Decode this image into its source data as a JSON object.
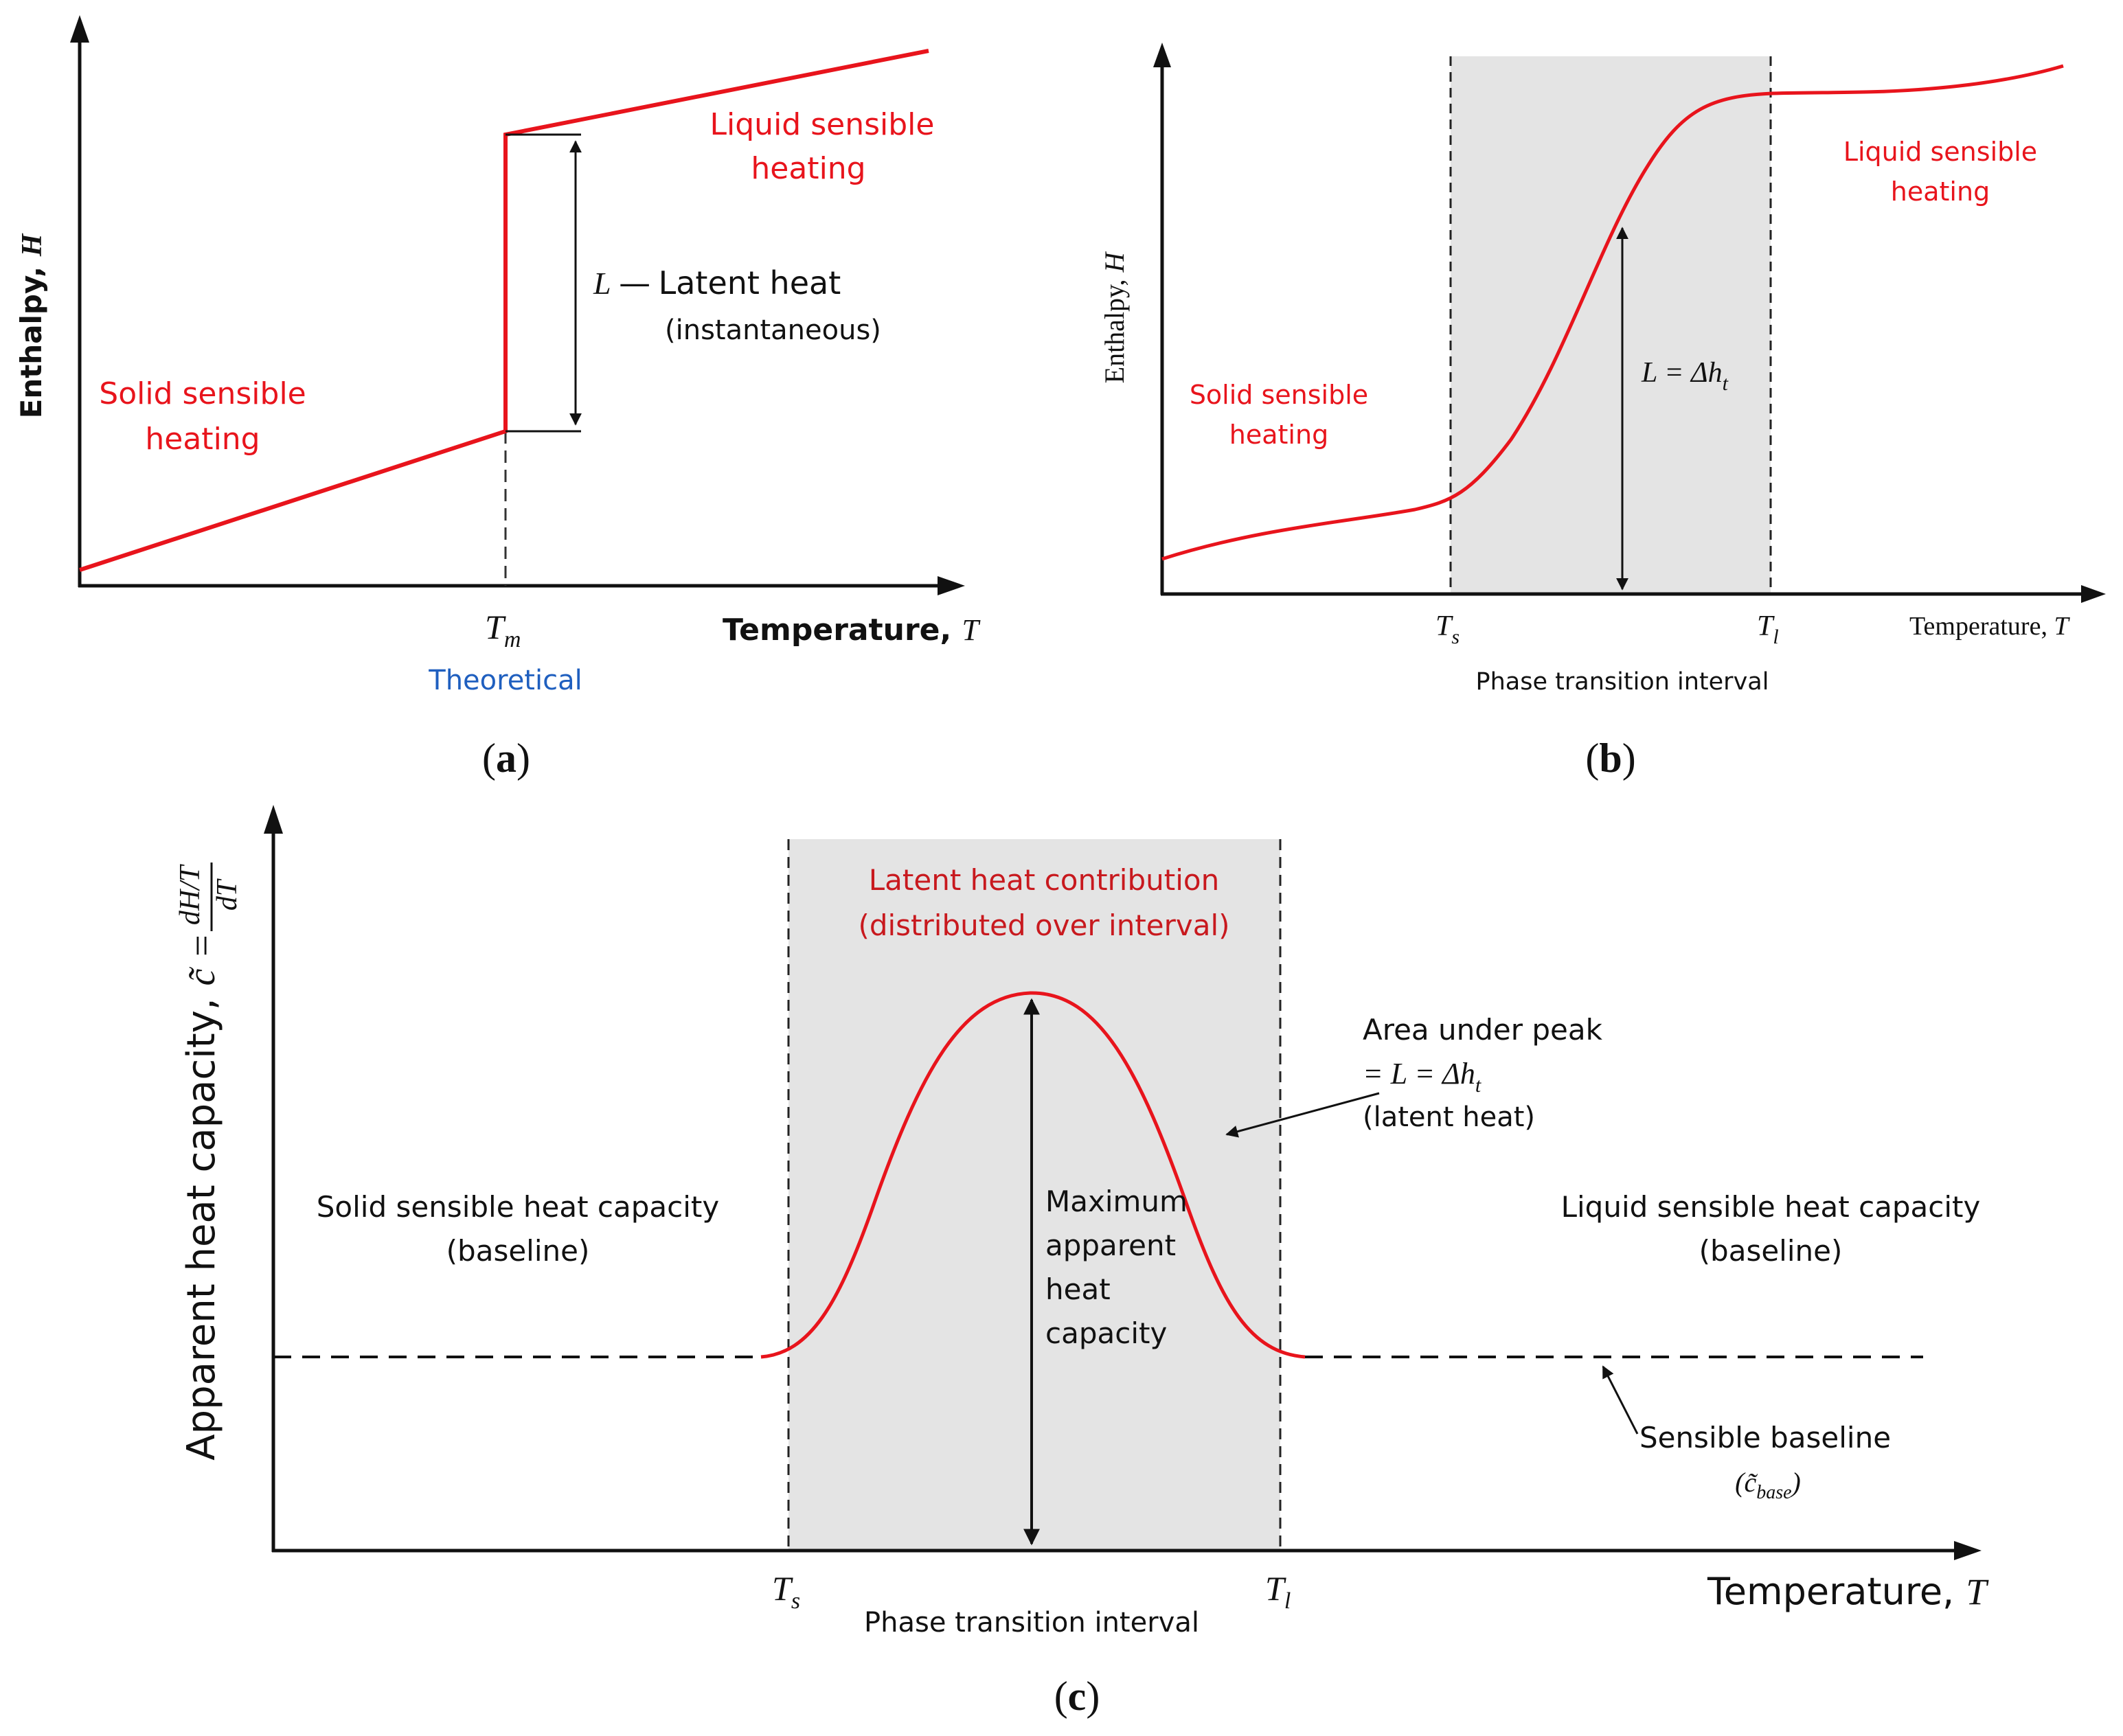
{
  "colors": {
    "curve": "#e8141c",
    "axis": "#111111",
    "band": "#e4e4e4",
    "theoretical": "#1f5fbf",
    "dark_red": "#c8191e"
  },
  "panel_a": {
    "caption": "(a)",
    "y_axis": "Enthalpy,",
    "y_symbol": "H",
    "x_axis": "Temperature,",
    "x_symbol": "T",
    "tm_main": "T",
    "tm_sub": "m",
    "theoretical": "Theoretical",
    "solid_1": "Solid sensible",
    "solid_2": "heating",
    "liquid_1": "Liquid sensible",
    "liquid_2": "heating",
    "latent_l": "L",
    "latent_dash": "—",
    "latent_text": "Latent heat",
    "latent_note": "(instantaneous)"
  },
  "panel_b": {
    "caption": "(b)",
    "y_axis": "Enthalpy,",
    "y_symbol": "H",
    "x_axis": "Temperature,",
    "x_symbol": "T",
    "ts_main": "T",
    "ts_sub": "s",
    "tl_main": "T",
    "tl_sub": "l",
    "interval": "Phase transition interval",
    "solid_1": "Solid sensible",
    "solid_2": "heating",
    "liquid_1": "Liquid sensible",
    "liquid_2": "heating",
    "latent_main": "L = Δh",
    "latent_sub": "t"
  },
  "panel_c": {
    "caption": "(c)",
    "y_axis": "Apparent heat capacity,",
    "y_c": "c̃",
    "y_eq": "=",
    "y_num": "dH/T",
    "y_den": "dT",
    "x_axis": "Temperature,",
    "x_symbol": "T",
    "ts_main": "T",
    "ts_sub": "s",
    "tl_main": "T",
    "tl_sub": "l",
    "interval": "Phase transition interval",
    "latent_1": "Latent heat contribution",
    "latent_2": "(distributed over interval)",
    "area_1": "Area under peak",
    "area_2_main": "= L = Δh",
    "area_2_sub": "t",
    "area_3": "(latent heat)",
    "max_1": "Maximum",
    "max_2": "apparent",
    "max_3": "heat",
    "max_4": "capacity",
    "solid_1": "Solid sensible heat capacity",
    "solid_2": "(baseline)",
    "liquid_1": "Liquid sensible heat capacity",
    "liquid_2": "(baseline)",
    "base_1": "Sensible baseline",
    "base_2_open": "(c̃",
    "base_2_sub": "base",
    "base_2_close": ")"
  }
}
